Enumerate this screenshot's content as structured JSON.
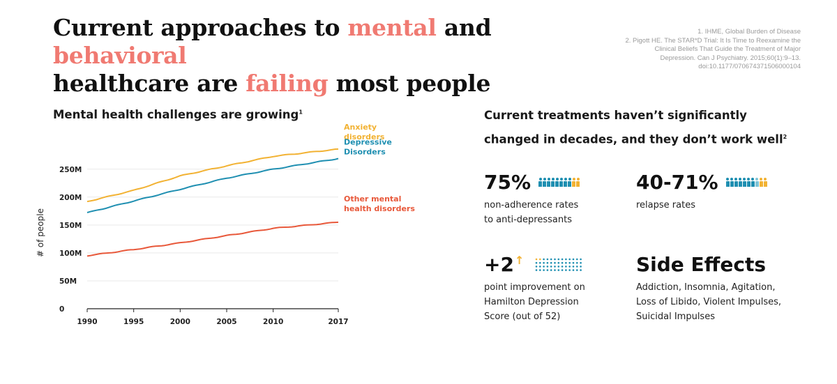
{
  "headline": {
    "p1": "Current approaches to ",
    "h1": "mental",
    "p2": " and ",
    "h2": "behavioral",
    "p3": "healthcare are ",
    "h3": "failing",
    "p4": " most people"
  },
  "references": [
    "1. IHME, Global Burden of Disease",
    "2. Pigott HE. The STAR*D Trial: It Is Time to Reexamine the",
    "Clinical Beliefs That Guide the Treatment of Major",
    "Depression. Can J Psychiatry. 2015;60(1):9–13.",
    "doi:10.1177/070674371506000104"
  ],
  "chart_title": "Mental health challenges are growing",
  "chart_title_sup": "1",
  "chart_data": {
    "type": "line",
    "title": "Mental health challenges are growing",
    "xlabel": "",
    "ylabel": "# of people",
    "xlim": [
      1990,
      2017
    ],
    "ylim": [
      0,
      250
    ],
    "x_ticks": [
      1990,
      1995,
      2000,
      2005,
      2010,
      2017
    ],
    "y_ticks": [
      0,
      50,
      100,
      150,
      200,
      250
    ],
    "y_tick_labels": [
      "0",
      "50M",
      "100M",
      "150M",
      "200M",
      "250M"
    ],
    "grid": "horizontal",
    "legend": "inline-right",
    "x": [
      1990,
      1995,
      2000,
      2005,
      2010,
      2017
    ],
    "series": [
      {
        "name": "Anxiety disorders",
        "name_lines": [
          "Anxiety",
          "disorders"
        ],
        "color": "#f2b233",
        "values": [
          192,
          212,
          238,
          256,
          273,
          286
        ]
      },
      {
        "name": "Depressive Disorders",
        "name_lines": [
          "Depressive",
          "Disorders"
        ],
        "color": "#1f8fb1",
        "values": [
          172,
          193,
          214,
          234,
          250,
          269
        ]
      },
      {
        "name": "Other mental health disorders",
        "name_lines": [
          "Other mental",
          "health disorders"
        ],
        "color": "#e8583a",
        "values": [
          95,
          106,
          118,
          131,
          144,
          155
        ]
      }
    ]
  },
  "right": {
    "title_line1": "Current treatments haven’t significantly",
    "title_line2": "changed in decades,  and they don’t work well",
    "title_sup": "2",
    "stats": [
      {
        "value": "75%",
        "desc_lines": [
          "non-adherence rates",
          "to anti-depressants"
        ],
        "people_teal": 8,
        "people_yellow": 2
      },
      {
        "value": "40-71%",
        "desc_lines": [
          "relapse rates"
        ],
        "people_teal": 7,
        "people_light": 1,
        "people_yellow": 2
      },
      {
        "value": "+2",
        "desc_lines": [
          "point improvement on",
          "Hamilton Depression",
          "Score (out of 52)"
        ]
      },
      {
        "value": "Side Effects",
        "desc_lines": [
          "Addiction, Insomnia, Agitation,",
          "Loss of Libido, Violent Impulses,",
          "Suicidal Impulses"
        ]
      }
    ],
    "dot_grid": {
      "cols": 13,
      "rows": 4,
      "highlight": 2
    },
    "colors": {
      "teal": "#1f8fb1",
      "light_teal": "#7fc4d8",
      "yellow": "#f2b233",
      "accent": "#f07a72"
    }
  }
}
